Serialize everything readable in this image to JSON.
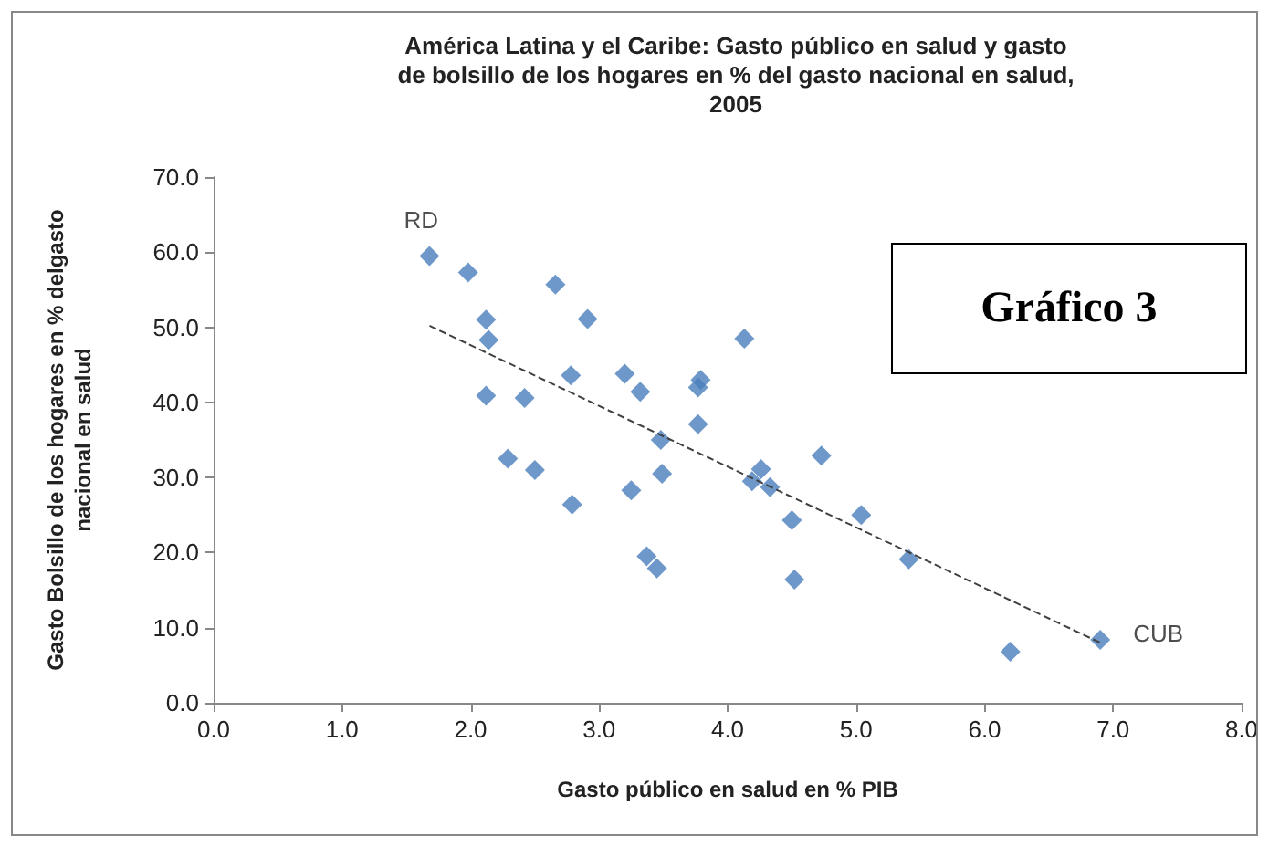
{
  "chart_data": {
    "type": "scatter",
    "title": "América Latina y el Caribe: Gasto público en salud y gasto\nde bolsillo de los hogares en % del gasto nacional en salud,\n2005",
    "xlabel": "Gasto público en salud en % PIB",
    "ylabel": "Gasto Bolsillo de los hogares en % delgasto\nnacional en salud",
    "xlim": [
      0,
      8
    ],
    "xticks": [
      {
        "value": 0,
        "label": "0.0"
      },
      {
        "value": 1,
        "label": "1.0"
      },
      {
        "value": 2,
        "label": "2.0"
      },
      {
        "value": 3,
        "label": "3.0"
      },
      {
        "value": 4,
        "label": "4.0"
      },
      {
        "value": 5,
        "label": "5.0"
      },
      {
        "value": 6,
        "label": "6.0"
      },
      {
        "value": 7,
        "label": "7.0"
      },
      {
        "value": 8,
        "label": "8.0"
      }
    ],
    "ylim": [
      0,
      70
    ],
    "yticks": [
      {
        "value": 0,
        "label": "0.0"
      },
      {
        "value": 10,
        "label": "10.0"
      },
      {
        "value": 20,
        "label": "20.0"
      },
      {
        "value": 30,
        "label": "30.0"
      },
      {
        "value": 40,
        "label": "40.0"
      },
      {
        "value": 50,
        "label": "50.0"
      },
      {
        "value": 60,
        "label": "60.0"
      },
      {
        "value": 70,
        "label": "70.0"
      }
    ],
    "grid": false,
    "series": [
      {
        "color": "#4a7ebb",
        "marker": "diamond",
        "x": [
          1.68,
          1.98,
          2.12,
          2.14,
          2.12,
          2.29,
          2.42,
          2.5,
          2.66,
          2.78,
          2.79,
          2.91,
          3.2,
          3.25,
          3.32,
          3.37,
          3.45,
          3.48,
          3.49,
          3.77,
          3.79,
          3.77,
          4.13,
          4.19,
          4.26,
          4.33,
          4.5,
          4.52,
          4.73,
          5.04,
          5.41,
          6.2,
          6.9
        ],
        "values": [
          59.5,
          57.3,
          51.0,
          48.3,
          40.9,
          32.5,
          40.6,
          31.0,
          55.7,
          43.6,
          26.4,
          51.1,
          43.8,
          28.3,
          41.4,
          19.5,
          17.9,
          35.0,
          30.5,
          42.0,
          43.0,
          37.1,
          48.5,
          29.5,
          31.1,
          28.7,
          24.3,
          16.4,
          32.9,
          25.0,
          19.1,
          6.8,
          8.4
        ]
      },
      {
        "type": "line",
        "color": "#404040",
        "marker": "none",
        "line_style": "dashed",
        "x": [
          1.68,
          6.9
        ],
        "values": [
          50.2,
          8.0
        ]
      }
    ],
    "annotations": [
      {
        "text": "RD",
        "x": 1.68,
        "y": 59.5
      },
      {
        "text": "CUB",
        "x": 6.9,
        "y": 8.4
      },
      "Gráfico 3"
    ]
  }
}
